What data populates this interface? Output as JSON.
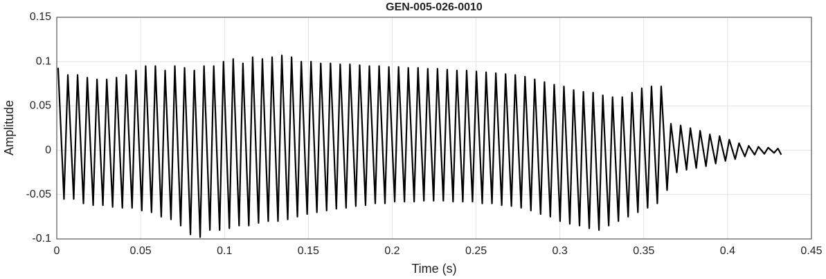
{
  "chart_data": {
    "type": "line",
    "title": "GEN-005-026-0010",
    "x_label": "Time (s)",
    "y_label": "Amplitude",
    "xlim": [
      0,
      0.45
    ],
    "ylim": [
      -0.1,
      0.15
    ],
    "xticks": [
      0,
      0.05,
      0.1,
      0.15,
      0.2,
      0.25,
      0.3,
      0.35,
      0.4,
      0.45
    ],
    "yticks": [
      -0.1,
      -0.05,
      0,
      0.05,
      0.1,
      0.15
    ],
    "grid": true,
    "x": [
      0.0008,
      0.0043,
      0.0066,
      0.0101,
      0.0124,
      0.0159,
      0.0182,
      0.0217,
      0.024,
      0.0275,
      0.0298,
      0.0333,
      0.0356,
      0.0391,
      0.0414,
      0.0449,
      0.0472,
      0.0507,
      0.053,
      0.0565,
      0.0588,
      0.0623,
      0.0646,
      0.0681,
      0.0704,
      0.0739,
      0.0762,
      0.0797,
      0.082,
      0.0855,
      0.0878,
      0.0913,
      0.0936,
      0.0971,
      0.0994,
      0.1029,
      0.1052,
      0.1087,
      0.111,
      0.1145,
      0.1168,
      0.1203,
      0.1226,
      0.1261,
      0.1284,
      0.1319,
      0.1342,
      0.1377,
      0.14,
      0.1435,
      0.1458,
      0.1493,
      0.1516,
      0.1551,
      0.1574,
      0.1609,
      0.1632,
      0.1667,
      0.169,
      0.1725,
      0.1748,
      0.1783,
      0.1806,
      0.1841,
      0.1864,
      0.1899,
      0.1922,
      0.1957,
      0.198,
      0.2015,
      0.2038,
      0.2073,
      0.2096,
      0.2131,
      0.2154,
      0.2189,
      0.2212,
      0.2247,
      0.227,
      0.2305,
      0.2328,
      0.2363,
      0.2386,
      0.2421,
      0.2444,
      0.2479,
      0.2502,
      0.2537,
      0.256,
      0.2595,
      0.2618,
      0.2653,
      0.2676,
      0.2711,
      0.2734,
      0.2769,
      0.2792,
      0.2827,
      0.285,
      0.2885,
      0.2908,
      0.2943,
      0.2966,
      0.3001,
      0.3024,
      0.3059,
      0.3082,
      0.3117,
      0.314,
      0.3175,
      0.3198,
      0.3233,
      0.3256,
      0.3291,
      0.3314,
      0.3349,
      0.3372,
      0.3407,
      0.343,
      0.3465,
      0.3488,
      0.3523,
      0.3546,
      0.3581,
      0.3604,
      0.3639,
      0.3662,
      0.3697,
      0.372,
      0.3755,
      0.3778,
      0.3813,
      0.3836,
      0.3871,
      0.3894,
      0.3929,
      0.3952,
      0.3987,
      0.401,
      0.4045,
      0.4068,
      0.4103,
      0.4126,
      0.4161,
      0.4184,
      0.4219,
      0.4242,
      0.4277,
      0.43,
      0.432
    ],
    "series": [
      {
        "color": "#000000",
        "values": [
          0.093,
          -0.055,
          0.085,
          -0.055,
          0.085,
          -0.06,
          0.082,
          -0.062,
          0.08,
          -0.062,
          0.08,
          -0.064,
          0.082,
          -0.065,
          0.085,
          -0.065,
          0.09,
          -0.068,
          0.095,
          -0.07,
          0.095,
          -0.075,
          0.09,
          -0.078,
          0.095,
          -0.085,
          0.093,
          -0.095,
          0.09,
          -0.098,
          0.095,
          -0.09,
          0.095,
          -0.09,
          0.1,
          -0.088,
          0.103,
          -0.085,
          0.098,
          -0.085,
          0.105,
          -0.082,
          0.103,
          -0.08,
          0.105,
          -0.08,
          0.107,
          -0.078,
          0.105,
          -0.075,
          0.1,
          -0.072,
          0.1,
          -0.07,
          0.098,
          -0.068,
          0.098,
          -0.066,
          0.097,
          -0.065,
          0.097,
          -0.063,
          0.096,
          -0.062,
          0.095,
          -0.06,
          0.095,
          -0.06,
          0.094,
          -0.058,
          0.094,
          -0.058,
          0.093,
          -0.058,
          0.093,
          -0.057,
          0.092,
          -0.057,
          0.092,
          -0.057,
          0.091,
          -0.058,
          0.09,
          -0.058,
          0.09,
          -0.058,
          0.089,
          -0.06,
          0.088,
          -0.06,
          0.087,
          -0.062,
          0.086,
          -0.063,
          0.085,
          -0.065,
          0.083,
          -0.068,
          0.08,
          -0.072,
          0.077,
          -0.075,
          0.074,
          -0.08,
          0.072,
          -0.083,
          0.068,
          -0.085,
          0.066,
          -0.088,
          0.065,
          -0.09,
          0.062,
          -0.085,
          0.06,
          -0.08,
          0.06,
          -0.075,
          0.065,
          -0.07,
          0.07,
          -0.065,
          0.072,
          -0.06,
          0.072,
          -0.045,
          0.03,
          -0.025,
          0.028,
          -0.022,
          0.025,
          -0.02,
          0.022,
          -0.018,
          0.018,
          -0.015,
          0.016,
          -0.012,
          0.012,
          -0.01,
          0.008,
          -0.007,
          0.005,
          -0.005,
          0.004,
          -0.004,
          0.003,
          -0.003,
          0.002,
          -0.005
        ]
      }
    ]
  }
}
